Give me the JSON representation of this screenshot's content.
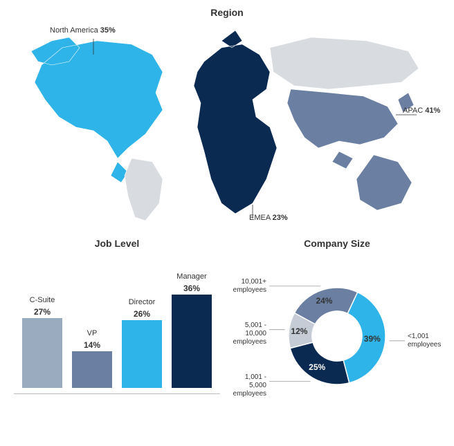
{
  "region": {
    "title": "Region",
    "na": {
      "label": "North America",
      "pct": "35%",
      "color": "#2eb4e8"
    },
    "emea": {
      "label": "EMEA",
      "pct": "23%",
      "color": "#0b2a52"
    },
    "apac": {
      "label": "APAC",
      "pct": "41%",
      "color": "#6a7fa2"
    },
    "rest_color": "#d8dbe0",
    "background": "#ffffff"
  },
  "job_level": {
    "title": "Job Level",
    "type": "bar",
    "ylim": [
      0,
      40
    ],
    "bar_gap": 14,
    "axis_color": "#bbbbbb",
    "bars": [
      {
        "label": "C-Suite",
        "value": 27,
        "pct": "27%",
        "color": "#9aabbf"
      },
      {
        "label": "VP",
        "value": 14,
        "pct": "14%",
        "color": "#6a7fa2"
      },
      {
        "label": "Director",
        "value": 26,
        "pct": "26%",
        "color": "#2eb4e8"
      },
      {
        "label": "Manager",
        "value": 36,
        "pct": "36%",
        "color": "#0b2a52"
      }
    ]
  },
  "company_size": {
    "title": "Company Size",
    "type": "donut",
    "inner_radius": 36,
    "outer_radius": 70,
    "slices": [
      {
        "label_line1": "<1,001",
        "label_line2": "employees",
        "value": 39,
        "pct": "39%",
        "color": "#2eb4e8"
      },
      {
        "label_line1": "1,001 - 5,000",
        "label_line2": "employees",
        "value": 25,
        "pct": "25%",
        "color": "#0b2a52"
      },
      {
        "label_line1": "5,001 - 10,000",
        "label_line2": "employees",
        "value": 12,
        "pct": "12%",
        "color": "#c5ccd6"
      },
      {
        "label_line1": "10,001+",
        "label_line2": "employees",
        "value": 24,
        "pct": "24%",
        "color": "#6a7fa2"
      }
    ],
    "start_angle_deg": -65,
    "pct_font_weight": 700,
    "pct_font_size": 12,
    "label_font_size": 10
  },
  "typography": {
    "title_fontsize": 14,
    "title_weight": 600,
    "label_fontsize": 11,
    "pct_fontsize": 12
  }
}
